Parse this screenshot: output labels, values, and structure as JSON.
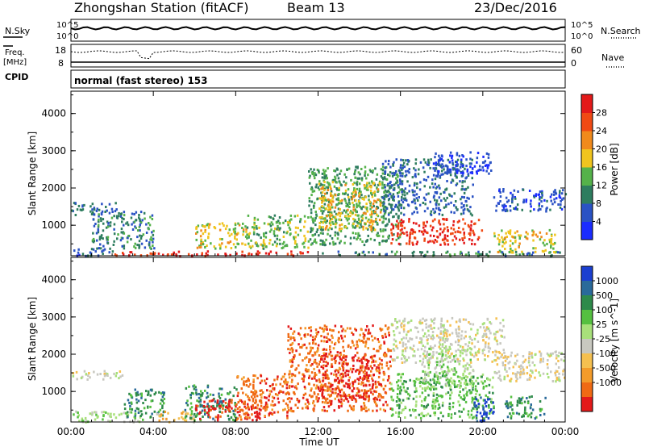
{
  "header": {
    "station": "Zhongshan Station (fitACF)",
    "beam": "Beam 13",
    "date": "23/Dec/2016"
  },
  "strip_panels": {
    "nsky": {
      "label": "N.Sky",
      "ticks": [
        "10^5",
        "10^0"
      ]
    },
    "nsearch": {
      "label": "N.Search",
      "ticks": [
        "10^5",
        "10^0"
      ]
    },
    "freq": {
      "label_top": "Freq.",
      "label_bottom": "[MHz]",
      "ticks": [
        "18",
        "8"
      ]
    },
    "nave": {
      "label": "Nave",
      "ticks": [
        "60",
        "0"
      ]
    },
    "cpid": {
      "label": "CPID",
      "value": "normal (fast stereo) 153"
    }
  },
  "chart_data": [
    {
      "type": "heatmap",
      "name": "power",
      "xlabel": "",
      "ylabel": "Slant Range [km]",
      "x_ticks": [
        "00:00",
        "04:00",
        "08:00",
        "12:00",
        "16:00",
        "20:00",
        "00:00"
      ],
      "y_ticks": [
        "1000",
        "2000",
        "3000",
        "4000"
      ],
      "xlim_hours": [
        0,
        24
      ],
      "ylim_km": [
        180,
        4600
      ],
      "colorbar": {
        "label": "Power [dB]",
        "ticks": [
          "4",
          "8",
          "12",
          "16",
          "20",
          "24",
          "28"
        ],
        "tick_values": [
          4,
          8,
          12,
          16,
          20,
          24,
          28
        ],
        "range": [
          0,
          32
        ],
        "colors": [
          "#1b2cff",
          "#2a52c4",
          "#2e7d5f",
          "#55b24a",
          "#f0c41e",
          "#f08a1c",
          "#f04a14",
          "#e31a1a"
        ]
      },
      "regions": [
        {
          "t0": 0.0,
          "t1": 2.2,
          "r0": 1300,
          "r1": 1650,
          "level": 8
        },
        {
          "t0": 0.1,
          "t1": 2.0,
          "r0": 200,
          "r1": 400,
          "level": 6
        },
        {
          "t0": 2.0,
          "t1": 4.0,
          "r0": 200,
          "r1": 320,
          "level": 28
        },
        {
          "t0": 4.0,
          "t1": 11.5,
          "r0": 200,
          "r1": 330,
          "level": 30
        },
        {
          "t0": 1.0,
          "t1": 4.0,
          "r0": 400,
          "r1": 1400,
          "level": 10
        },
        {
          "t0": 6.0,
          "t1": 8.5,
          "r0": 400,
          "r1": 1100,
          "level": 18
        },
        {
          "t0": 8.5,
          "t1": 11.5,
          "r0": 400,
          "r1": 1300,
          "level": 14
        },
        {
          "t0": 11.5,
          "t1": 16.0,
          "r0": 500,
          "r1": 2600,
          "level": 12
        },
        {
          "t0": 12.0,
          "t1": 15.0,
          "r0": 900,
          "r1": 2200,
          "level": 18
        },
        {
          "t0": 15.5,
          "t1": 20.0,
          "r0": 500,
          "r1": 1200,
          "level": 28
        },
        {
          "t0": 15.0,
          "t1": 19.5,
          "r0": 1300,
          "r1": 2800,
          "level": 8
        },
        {
          "t0": 17.5,
          "t1": 20.5,
          "r0": 2400,
          "r1": 3000,
          "level": 4
        },
        {
          "t0": 20.5,
          "t1": 24.0,
          "r0": 1400,
          "r1": 2000,
          "level": 6
        },
        {
          "t0": 20.5,
          "t1": 23.5,
          "r0": 300,
          "r1": 900,
          "level": 18
        },
        {
          "t0": 12.0,
          "t1": 24.0,
          "r0": 200,
          "r1": 320,
          "level": 10
        }
      ]
    },
    {
      "type": "heatmap",
      "name": "velocity",
      "xlabel": "Time UT",
      "ylabel": "Slant Range [km]",
      "x_ticks": [
        "00:00",
        "04:00",
        "08:00",
        "12:00",
        "16:00",
        "20:00",
        "00:00"
      ],
      "y_ticks": [
        "1000",
        "2000",
        "3000",
        "4000"
      ],
      "xlim_hours": [
        0,
        24
      ],
      "ylim_km": [
        180,
        4600
      ],
      "colorbar": {
        "label": "Velocity [m s^-1]",
        "ticks": [
          "1000",
          "500",
          "100",
          "25",
          "-25",
          "-100",
          "-500",
          "-1000"
        ],
        "colors": [
          "#1b3fd0",
          "#2a6a9a",
          "#2e8a4a",
          "#55c040",
          "#a8e07a",
          "#c8c8c0",
          "#f5c050",
          "#f39b2a",
          "#f06a14",
          "#e31a1a"
        ]
      },
      "regions": [
        {
          "t0": 0.0,
          "t1": 2.5,
          "r0": 1350,
          "r1": 1600,
          "level": 5
        },
        {
          "t0": 0.0,
          "t1": 3.5,
          "r0": 200,
          "r1": 500,
          "level": 4
        },
        {
          "t0": 2.5,
          "t1": 4.5,
          "r0": 300,
          "r1": 1100,
          "level": 2
        },
        {
          "t0": 4.0,
          "t1": 6.0,
          "r0": 200,
          "r1": 500,
          "level": 6
        },
        {
          "t0": 5.5,
          "t1": 8.0,
          "r0": 250,
          "r1": 1200,
          "level": 2
        },
        {
          "t0": 6.0,
          "t1": 9.5,
          "r0": 250,
          "r1": 800,
          "level": 9
        },
        {
          "t0": 8.0,
          "t1": 10.5,
          "r0": 300,
          "r1": 1500,
          "level": 8
        },
        {
          "t0": 10.5,
          "t1": 15.5,
          "r0": 500,
          "r1": 2800,
          "level": 8
        },
        {
          "t0": 12.0,
          "t1": 15.0,
          "r0": 800,
          "r1": 2000,
          "level": 9
        },
        {
          "t0": 15.5,
          "t1": 20.5,
          "r0": 300,
          "r1": 1500,
          "level": 3
        },
        {
          "t0": 15.5,
          "t1": 21.0,
          "r0": 1800,
          "r1": 3000,
          "level": 5
        },
        {
          "t0": 17.0,
          "t1": 19.5,
          "r0": 1100,
          "r1": 2200,
          "level": 4
        },
        {
          "t0": 19.5,
          "t1": 20.5,
          "r0": 200,
          "r1": 900,
          "level": 0
        },
        {
          "t0": 20.5,
          "t1": 24.0,
          "r0": 1300,
          "r1": 2100,
          "level": 5
        },
        {
          "t0": 21.0,
          "t1": 23.0,
          "r0": 300,
          "r1": 900,
          "level": 2
        }
      ]
    }
  ]
}
